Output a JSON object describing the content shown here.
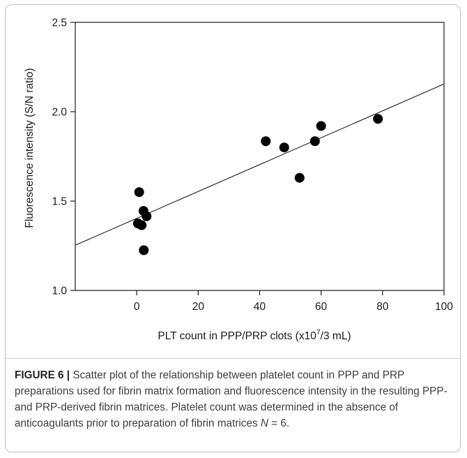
{
  "chart_data": {
    "type": "scatter",
    "xlabel": "PLT count in PPP/PRP clots (x10",
    "xlabel_sup": "7",
    "xlabel_end": "/3 mL)",
    "ylabel": "Fluorescence intensity (S/N ratio)",
    "xlim": [
      -20,
      100
    ],
    "ylim": [
      1.0,
      2.5
    ],
    "x_ticks": [
      0,
      20,
      40,
      60,
      80,
      100
    ],
    "x_tick_labels": [
      "0",
      "20",
      "40",
      "60",
      "80",
      "100"
    ],
    "y_ticks": [
      1.0,
      1.5,
      2.0,
      2.5
    ],
    "y_tick_labels": [
      "1.0",
      "1.5",
      "2.0",
      "2.5"
    ],
    "points": [
      {
        "x": 0.8,
        "y": 1.55
      },
      {
        "x": 2.2,
        "y": 1.445
      },
      {
        "x": 3.2,
        "y": 1.415
      },
      {
        "x": 0.4,
        "y": 1.375
      },
      {
        "x": 1.6,
        "y": 1.365
      },
      {
        "x": 2.3,
        "y": 1.225
      },
      {
        "x": 42.0,
        "y": 1.835
      },
      {
        "x": 48.0,
        "y": 1.8
      },
      {
        "x": 53.0,
        "y": 1.63
      },
      {
        "x": 58.0,
        "y": 1.835
      },
      {
        "x": 60.0,
        "y": 1.92
      },
      {
        "x": 78.5,
        "y": 1.96
      }
    ],
    "trendline": {
      "type": "linear",
      "x": [
        -20,
        100
      ],
      "y": [
        1.253,
        2.155
      ]
    },
    "grid": false,
    "marker_color": "#000000"
  },
  "caption": {
    "label": "FIGURE 6 |",
    "text": " Scatter plot of the relationship between platelet count in PPP and PRP preparations used for fibrin matrix formation and fluorescence intensity in the resulting PPP- and PRP-derived fibrin matrices. Platelet count was determined in the absence of anticoagulants prior to preparation of fibrin matrices ",
    "n_symbol": "N",
    "n_text": " = 6."
  }
}
